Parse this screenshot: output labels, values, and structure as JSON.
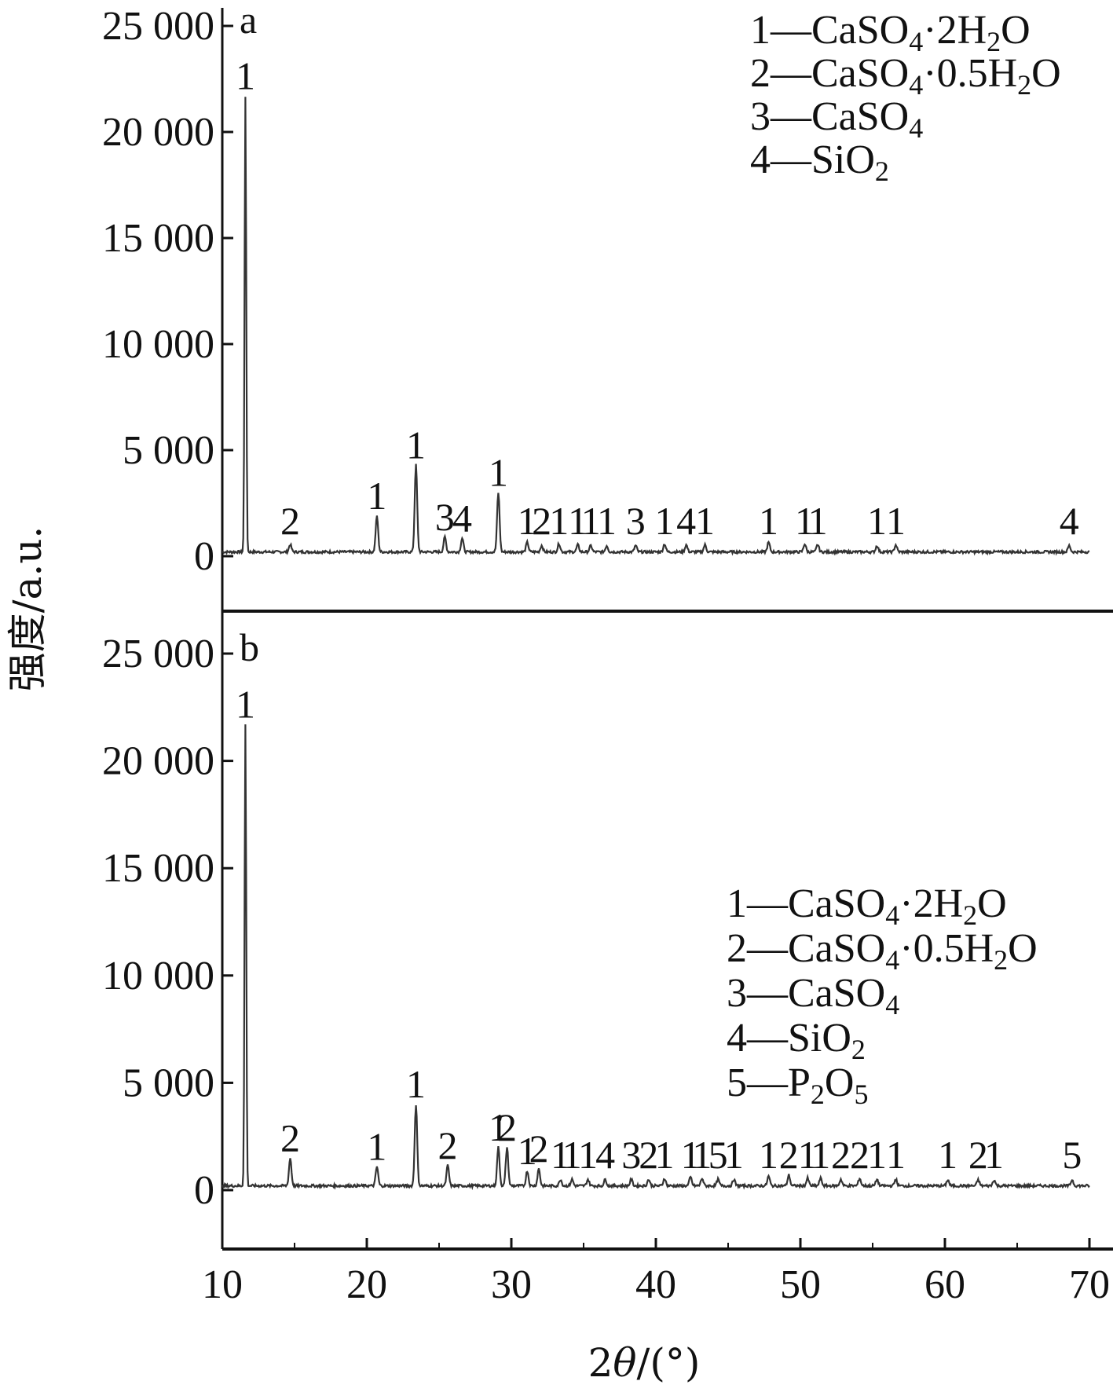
{
  "chart_data": {
    "type": "line",
    "ylabel": "强度/a.u.",
    "xlabel": "2θ/(°)",
    "xlim": [
      10,
      70
    ],
    "x_ticks": [
      "10",
      "20",
      "30",
      "40",
      "50",
      "60",
      "70"
    ],
    "legend_number_sep": "—",
    "panels": [
      {
        "id": "a",
        "label": "a",
        "ylim": [
          -2500,
          25000
        ],
        "y_ticks": [
          "0",
          "5 000",
          "10 000",
          "15 000",
          "20 000",
          "25 000"
        ],
        "y_tick_values": [
          0,
          5000,
          10000,
          15000,
          20000,
          25000
        ],
        "baseline": 200,
        "peaks": [
          {
            "x": 11.6,
            "y": 21500,
            "label": "1"
          },
          {
            "x": 14.7,
            "y": 350,
            "label": "2"
          },
          {
            "x": 20.7,
            "y": 1700,
            "label": "1"
          },
          {
            "x": 23.4,
            "y": 4100,
            "label": "1"
          },
          {
            "x": 25.4,
            "y": 700,
            "label": "3"
          },
          {
            "x": 26.6,
            "y": 650,
            "label": "4"
          },
          {
            "x": 29.1,
            "y": 2800,
            "label": "1"
          },
          {
            "x": 31.1,
            "y": 450,
            "label": "1"
          },
          {
            "x": 32.1,
            "y": 300,
            "label": "2"
          },
          {
            "x": 33.3,
            "y": 400,
            "label": "1"
          },
          {
            "x": 34.6,
            "y": 330,
            "label": "1"
          },
          {
            "x": 35.5,
            "y": 300,
            "label": "1"
          },
          {
            "x": 36.6,
            "y": 300,
            "label": "1"
          },
          {
            "x": 38.6,
            "y": 300,
            "label": "3"
          },
          {
            "x": 40.6,
            "y": 380,
            "label": "1"
          },
          {
            "x": 42.1,
            "y": 330,
            "label": "4"
          },
          {
            "x": 43.4,
            "y": 330,
            "label": "1"
          },
          {
            "x": 47.8,
            "y": 450,
            "label": "1"
          },
          {
            "x": 50.3,
            "y": 380,
            "label": "1"
          },
          {
            "x": 51.2,
            "y": 350,
            "label": "1"
          },
          {
            "x": 55.3,
            "y": 300,
            "label": "1"
          },
          {
            "x": 56.6,
            "y": 330,
            "label": "1"
          },
          {
            "x": 68.6,
            "y": 300,
            "label": "4"
          }
        ],
        "legend": [
          {
            "num": "1",
            "pre": "CaSO",
            "sub": "4",
            "post": "·2H",
            "sub2": "2",
            "post2": "O"
          },
          {
            "num": "2",
            "pre": "CaSO",
            "sub": "4",
            "post": "·0.5H",
            "sub2": "2",
            "post2": "O"
          },
          {
            "num": "3",
            "pre": "CaSO",
            "sub": "4",
            "post": "",
            "sub2": "",
            "post2": ""
          },
          {
            "num": "4",
            "pre": "SiO",
            "sub": "2",
            "post": "",
            "sub2": "",
            "post2": ""
          }
        ]
      },
      {
        "id": "b",
        "label": "b",
        "ylim": [
          -2500,
          25000
        ],
        "y_ticks": [
          "0",
          "5 000",
          "10 000",
          "15 000",
          "20 000",
          "25 000"
        ],
        "y_tick_values": [
          0,
          5000,
          10000,
          15000,
          20000,
          25000
        ],
        "baseline": 200,
        "peaks": [
          {
            "x": 11.6,
            "y": 21500,
            "label": "1"
          },
          {
            "x": 14.7,
            "y": 1300,
            "label": "2"
          },
          {
            "x": 20.7,
            "y": 900,
            "label": "1"
          },
          {
            "x": 23.4,
            "y": 3800,
            "label": "1"
          },
          {
            "x": 25.6,
            "y": 950,
            "label": "2"
          },
          {
            "x": 29.1,
            "y": 1800,
            "label": "1"
          },
          {
            "x": 29.7,
            "y": 1800,
            "label": "2"
          },
          {
            "x": 31.1,
            "y": 700,
            "label": "1"
          },
          {
            "x": 31.9,
            "y": 800,
            "label": "2"
          },
          {
            "x": 33.4,
            "y": 300,
            "label": "1"
          },
          {
            "x": 34.2,
            "y": 300,
            "label": "1"
          },
          {
            "x": 35.3,
            "y": 300,
            "label": "1"
          },
          {
            "x": 36.5,
            "y": 300,
            "label": "4"
          },
          {
            "x": 38.3,
            "y": 300,
            "label": "3"
          },
          {
            "x": 39.5,
            "y": 300,
            "label": "2"
          },
          {
            "x": 40.6,
            "y": 350,
            "label": "1"
          },
          {
            "x": 42.4,
            "y": 400,
            "label": "1"
          },
          {
            "x": 43.2,
            "y": 350,
            "label": "1"
          },
          {
            "x": 44.3,
            "y": 300,
            "label": "5"
          },
          {
            "x": 45.4,
            "y": 300,
            "label": "1"
          },
          {
            "x": 47.8,
            "y": 450,
            "label": "1"
          },
          {
            "x": 49.2,
            "y": 500,
            "label": "2"
          },
          {
            "x": 50.5,
            "y": 350,
            "label": "1"
          },
          {
            "x": 51.4,
            "y": 350,
            "label": "1"
          },
          {
            "x": 52.8,
            "y": 300,
            "label": "2"
          },
          {
            "x": 54.1,
            "y": 350,
            "label": "2"
          },
          {
            "x": 55.3,
            "y": 300,
            "label": "1"
          },
          {
            "x": 56.6,
            "y": 300,
            "label": "1"
          },
          {
            "x": 60.2,
            "y": 280,
            "label": "1"
          },
          {
            "x": 62.3,
            "y": 280,
            "label": "2"
          },
          {
            "x": 63.4,
            "y": 280,
            "label": "1"
          },
          {
            "x": 68.8,
            "y": 280,
            "label": "5"
          }
        ],
        "legend": [
          {
            "num": "1",
            "pre": "CaSO",
            "sub": "4",
            "post": "·2H",
            "sub2": "2",
            "post2": "O"
          },
          {
            "num": "2",
            "pre": "CaSO",
            "sub": "4",
            "post": "·0.5H",
            "sub2": "2",
            "post2": "O"
          },
          {
            "num": "3",
            "pre": "CaSO",
            "sub": "4",
            "post": "",
            "sub2": "",
            "post2": ""
          },
          {
            "num": "4",
            "pre": "SiO",
            "sub": "2",
            "post": "",
            "sub2": "",
            "post2": ""
          },
          {
            "num": "5",
            "pre": "P",
            "sub": "2",
            "post": "O",
            "sub2": "5",
            "post2": ""
          }
        ]
      }
    ]
  }
}
